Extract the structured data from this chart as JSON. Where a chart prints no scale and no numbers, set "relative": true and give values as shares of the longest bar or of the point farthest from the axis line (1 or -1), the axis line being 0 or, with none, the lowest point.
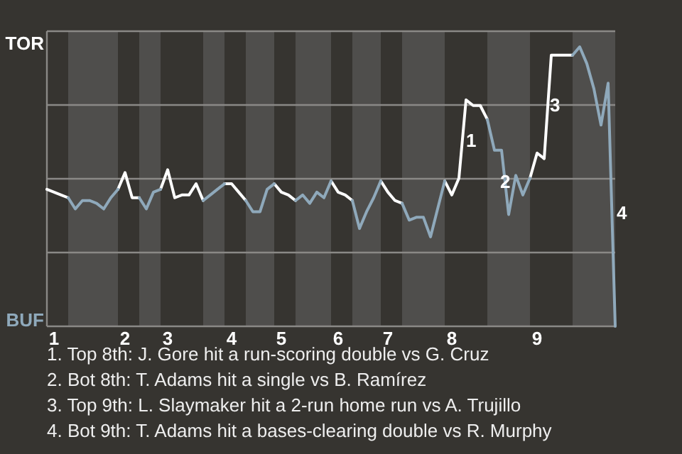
{
  "chart_data": {
    "type": "line",
    "relative": true,
    "categories": [
      null,
      "1",
      null,
      null,
      null,
      null,
      null,
      null,
      null,
      null,
      null,
      "2",
      null,
      null,
      null,
      null,
      null,
      "3",
      null,
      null,
      null,
      null,
      null,
      null,
      null,
      null,
      "4",
      null,
      null,
      null,
      null,
      null,
      null,
      "5",
      null,
      null,
      null,
      null,
      null,
      null,
      null,
      "6",
      null,
      null,
      null,
      null,
      null,
      null,
      "7",
      null,
      null,
      null,
      null,
      null,
      null,
      null,
      null,
      "8",
      null,
      null,
      null,
      null,
      null,
      null,
      null,
      null,
      null,
      null,
      null,
      "9",
      null,
      null,
      null,
      null,
      null,
      null,
      null,
      null,
      null,
      null,
      null
    ],
    "series": [
      {
        "name": "TOR",
        "color": "#ffffff",
        "values": [
          0.49,
          0.48,
          0.47,
          0.46,
          null,
          null,
          null,
          null,
          null,
          null,
          0.49,
          0.55,
          0.46,
          0.46,
          null,
          null,
          0.49,
          0.56,
          0.46,
          0.47,
          0.47,
          0.51,
          0.45,
          null,
          null,
          0.51,
          0.51,
          0.48,
          0.45,
          null,
          null,
          null,
          0.51,
          0.48,
          0.47,
          0.45,
          null,
          null,
          null,
          null,
          0.52,
          0.48,
          0.47,
          0.45,
          null,
          null,
          null,
          0.52,
          0.48,
          0.45,
          0.44,
          null,
          null,
          null,
          null,
          null,
          0.52,
          0.47,
          0.53,
          0.81,
          0.79,
          0.79,
          0.74,
          null,
          null,
          null,
          null,
          null,
          0.53,
          0.62,
          0.6,
          0.97,
          0.97,
          0.97,
          0.97,
          null,
          null,
          null,
          null,
          null,
          null
        ]
      },
      {
        "name": "BUF",
        "color": "#8fa9bb",
        "values": [
          null,
          null,
          null,
          0.46,
          0.42,
          0.45,
          0.45,
          0.44,
          0.42,
          0.46,
          0.49,
          null,
          null,
          0.46,
          0.42,
          0.48,
          0.49,
          null,
          null,
          null,
          null,
          null,
          0.45,
          0.47,
          0.49,
          0.51,
          null,
          null,
          0.45,
          0.41,
          0.41,
          0.49,
          0.51,
          null,
          null,
          0.45,
          0.47,
          0.44,
          0.48,
          0.46,
          0.52,
          null,
          null,
          0.45,
          0.35,
          0.41,
          0.46,
          0.52,
          null,
          null,
          0.44,
          0.38,
          0.39,
          0.39,
          0.32,
          0.42,
          0.52,
          null,
          null,
          null,
          null,
          null,
          0.74,
          0.63,
          0.63,
          0.4,
          0.54,
          0.47,
          0.53,
          null,
          null,
          null,
          null,
          null,
          0.97,
          1,
          0.94,
          0.85,
          0.72,
          0.87,
          0
        ]
      }
    ],
    "grid": "y",
    "marker": "none",
    "line_style": "solid",
    "legend": "left",
    "annotations": [
      "1",
      "2",
      "3",
      "4",
      "1. Top 8th: J. Gore hit a run-scoring double vs G. Cruz",
      "2. Bot 8th: T. Adams hit a single vs B. Ramírez",
      "3. Top 9th: L. Slaymaker hit a 2-run home run vs A. Trujillo",
      "4. Bot 9th: T. Adams hit a bases-clearing double vs R. Murphy"
    ]
  }
}
